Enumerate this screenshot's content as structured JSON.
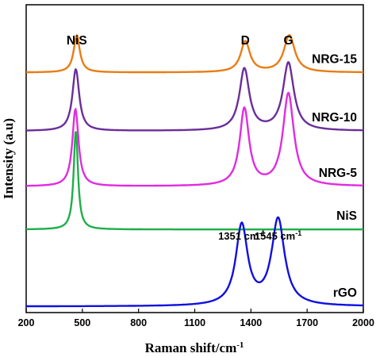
{
  "chart_data": {
    "type": "line",
    "xlabel": "Raman shift/cm",
    "xlabel_sup": "-1",
    "ylabel": "Intensity (a.u)",
    "xlim": [
      200,
      2000
    ],
    "xticks": [
      200,
      500,
      800,
      1100,
      1400,
      1700,
      2000
    ],
    "peak_labels": [
      {
        "text": "NiS",
        "x": 470
      },
      {
        "text": "D",
        "x": 1370
      },
      {
        "text": "G",
        "x": 1600
      }
    ],
    "annotations": [
      {
        "text": "1351 cm",
        "sup": "-1",
        "x": 1351
      },
      {
        "text": "1545 cm",
        "sup": "-1",
        "x": 1545
      }
    ],
    "series": [
      {
        "name": "NRG-15",
        "color": "#E87D14",
        "baseline": 0.78,
        "peaks": [
          [
            470,
            0.12,
            20
          ],
          [
            1370,
            0.1,
            30
          ],
          [
            1605,
            0.12,
            35
          ]
        ]
      },
      {
        "name": "NRG-10",
        "color": "#6A2E9A",
        "baseline": 0.59,
        "peaks": [
          [
            465,
            0.2,
            22
          ],
          [
            1365,
            0.2,
            32
          ],
          [
            1600,
            0.22,
            35
          ]
        ]
      },
      {
        "name": "NRG-5",
        "color": "#E02CE0",
        "baseline": 0.41,
        "peaks": [
          [
            463,
            0.25,
            20
          ],
          [
            1365,
            0.25,
            30
          ],
          [
            1600,
            0.3,
            35
          ]
        ]
      },
      {
        "name": "NiS",
        "color": "#1FAE4A",
        "baseline": 0.27,
        "peaks": [
          [
            465,
            0.32,
            14
          ]
        ]
      },
      {
        "name": "rGO",
        "color": "#1010E0",
        "baseline": 0.02,
        "peaks": [
          [
            1351,
            0.26,
            38
          ],
          [
            1545,
            0.28,
            42
          ]
        ]
      }
    ]
  }
}
